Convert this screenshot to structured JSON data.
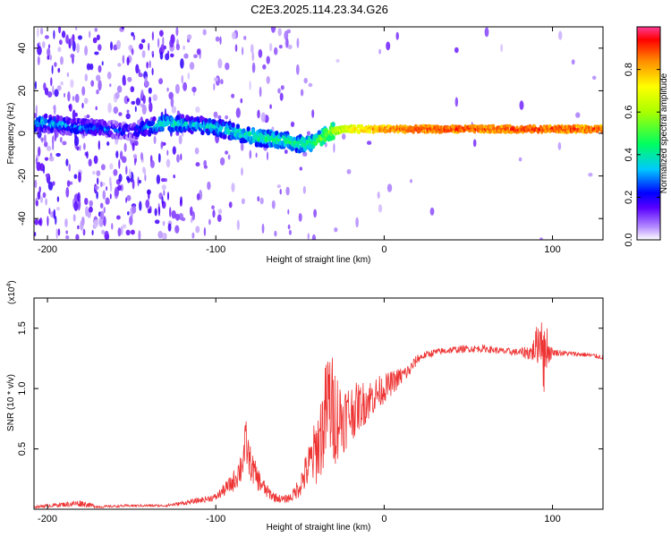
{
  "title": "C2E3.2025.114.23.34.G26",
  "chart_data": [
    {
      "type": "heatmap",
      "xlabel": "Height of straight line (km)",
      "ylabel": "Frequency (Hz)",
      "xlim": [
        -208,
        130
      ],
      "ylim": [
        -50,
        50
      ],
      "xticks": [
        -200,
        -100,
        0,
        100
      ],
      "yticks": [
        -40,
        -20,
        0,
        20,
        40
      ],
      "colorbar": {
        "label": "Normalized spectral amplitude",
        "range": [
          0,
          1
        ],
        "ticks": [
          "0.0",
          "0.2",
          "0.4",
          "0.6",
          "0.8"
        ]
      },
      "ridge": {
        "description": "Dominant frequency vs height",
        "x": [
          -205,
          -180,
          -150,
          -130,
          -110,
          -90,
          -75,
          -60,
          -50,
          -40,
          -32,
          -20,
          -10,
          0,
          20,
          50,
          90,
          100,
          130
        ],
        "freq": [
          5,
          3,
          1,
          5,
          4,
          1,
          -2,
          -3,
          -5,
          -4,
          1,
          2,
          2,
          2,
          2,
          2,
          2,
          2,
          2
        ],
        "amplitude": [
          0.35,
          0.3,
          0.25,
          0.4,
          0.35,
          0.4,
          0.45,
          0.45,
          0.45,
          0.5,
          0.6,
          0.75,
          0.8,
          0.85,
          0.9,
          0.9,
          0.9,
          0.9,
          0.9
        ]
      }
    },
    {
      "type": "line",
      "xlabel": "Height of straight line (km)",
      "ylabel": "SNR (10 * v/v)",
      "yscale_label": "(x10^4)",
      "yscale_base": "x10",
      "yscale_exp": "4",
      "xlim": [
        -208,
        130
      ],
      "ylim": [
        0,
        1.75
      ],
      "xticks": [
        -200,
        -100,
        0,
        100
      ],
      "yticks": [
        0.5,
        1.0,
        1.5
      ],
      "ytick_labels": [
        "0.5",
        "1.0",
        "1.5"
      ],
      "series": [
        {
          "name": "SNR",
          "color": "#ee3333",
          "x": [
            -208,
            -190,
            -180,
            -170,
            -150,
            -130,
            -115,
            -100,
            -90,
            -85,
            -82,
            -80,
            -77,
            -75,
            -70,
            -65,
            -60,
            -55,
            -50,
            -45,
            -40,
            -36,
            -33,
            -30,
            -25,
            -20,
            -15,
            -10,
            -5,
            0,
            5,
            10,
            15,
            20,
            25,
            30,
            40,
            50,
            60,
            70,
            80,
            88,
            92,
            94,
            95,
            96,
            98,
            100,
            110,
            120,
            130
          ],
          "y": [
            0.02,
            0.04,
            0.05,
            0.02,
            0.03,
            0.03,
            0.06,
            0.1,
            0.22,
            0.35,
            0.55,
            0.4,
            0.3,
            0.25,
            0.15,
            0.1,
            0.08,
            0.1,
            0.2,
            0.35,
            0.5,
            0.7,
            0.9,
            0.8,
            0.75,
            0.8,
            0.85,
            0.9,
            0.95,
            1.0,
            1.05,
            1.1,
            1.15,
            1.25,
            1.28,
            1.3,
            1.32,
            1.33,
            1.33,
            1.31,
            1.3,
            1.3,
            1.4,
            1.5,
            1.1,
            1.4,
            1.3,
            1.3,
            1.29,
            1.28,
            1.26
          ],
          "noise_amplitude": [
            0.01,
            0.02,
            0.03,
            0.01,
            0.01,
            0.01,
            0.02,
            0.03,
            0.08,
            0.15,
            0.2,
            0.15,
            0.12,
            0.1,
            0.06,
            0.04,
            0.03,
            0.04,
            0.1,
            0.18,
            0.3,
            0.4,
            0.5,
            0.45,
            0.3,
            0.25,
            0.2,
            0.18,
            0.15,
            0.12,
            0.1,
            0.08,
            0.06,
            0.04,
            0.03,
            0.03,
            0.03,
            0.03,
            0.03,
            0.03,
            0.03,
            0.08,
            0.2,
            0.3,
            0.35,
            0.25,
            0.1,
            0.03,
            0.02,
            0.02,
            0.02
          ]
        }
      ]
    }
  ]
}
